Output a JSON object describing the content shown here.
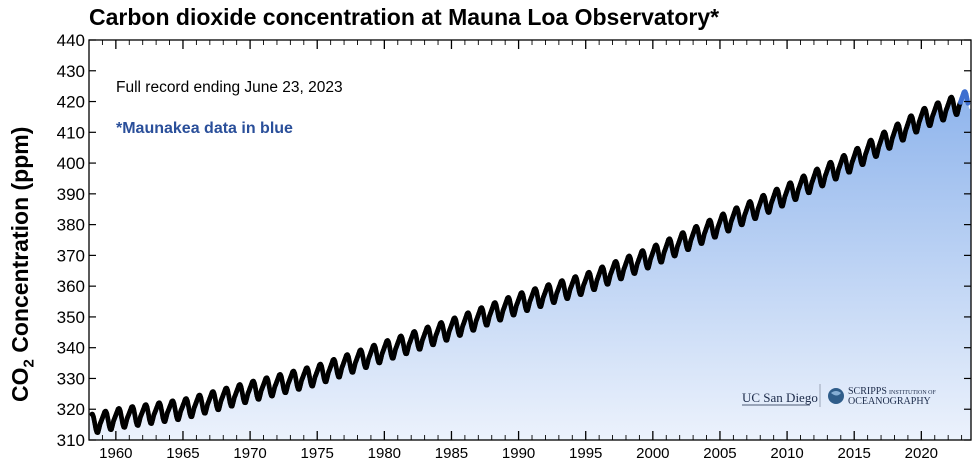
{
  "title": "Carbon dioxide concentration at Mauna Loa Observatory*",
  "chart_data": {
    "type": "scatter",
    "title": "Carbon dioxide concentration at Mauna Loa Observatory*",
    "ylabel_main": "CO",
    "ylabel_sub": "2",
    "ylabel_rest": " Concentration (ppm)",
    "xlabel": "",
    "xlim": [
      1958.0,
      2023.7
    ],
    "ylim": [
      310,
      440
    ],
    "yticks": [
      310,
      320,
      330,
      340,
      350,
      360,
      370,
      380,
      390,
      400,
      410,
      420,
      430,
      440
    ],
    "xticks": [
      1960,
      1965,
      1970,
      1975,
      1980,
      1985,
      1990,
      1995,
      2000,
      2005,
      2010,
      2015,
      2020
    ],
    "trend": [
      {
        "year": 1958,
        "ppm": 315.0
      },
      {
        "year": 1960,
        "ppm": 316.9
      },
      {
        "year": 1965,
        "ppm": 320.0
      },
      {
        "year": 1970,
        "ppm": 325.7
      },
      {
        "year": 1975,
        "ppm": 331.1
      },
      {
        "year": 1980,
        "ppm": 338.8
      },
      {
        "year": 1985,
        "ppm": 346.1
      },
      {
        "year": 1990,
        "ppm": 354.4
      },
      {
        "year": 1995,
        "ppm": 360.9
      },
      {
        "year": 2000,
        "ppm": 369.7
      },
      {
        "year": 2005,
        "ppm": 379.8
      },
      {
        "year": 2010,
        "ppm": 389.9
      },
      {
        "year": 2015,
        "ppm": 401.0
      },
      {
        "year": 2020,
        "ppm": 414.2
      },
      {
        "year": 2023.5,
        "ppm": 420.5
      }
    ],
    "seasonal_amplitude_ppm": 3.2,
    "monthly_cycle": [
      0.38,
      0.65,
      0.95,
      1.0,
      0.7,
      0.1,
      -0.55,
      -0.95,
      -1.0,
      -0.6,
      -0.15,
      0.1
    ],
    "point_color": "#000000",
    "maunakea_color": "#3f6fd0",
    "fill_top_color": "#8eb4ec",
    "fill_bottom_color": "#ecf2fc",
    "grid": false,
    "legend": "none"
  },
  "annotations": {
    "record_note": "Full record ending June 23, 2023",
    "maunakea_note": "*Maunakea data in blue"
  },
  "logos": {
    "ucsd": "UC San Diego",
    "scripps_line1": "SCRIPPS",
    "scripps_small": "INSTITUTION OF",
    "scripps_line2": "OCEANOGRAPHY"
  }
}
